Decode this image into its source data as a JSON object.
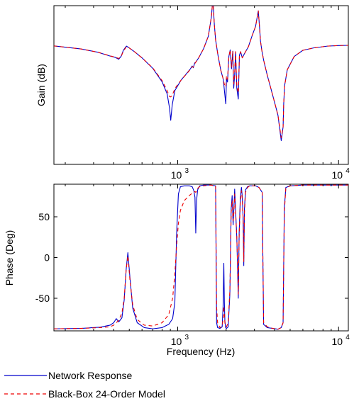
{
  "chart_data": [
    {
      "type": "line",
      "ylabel": "Gain (dB)",
      "xlabel": "",
      "xscale": "log",
      "xlim": [
        170,
        11500
      ],
      "ylim": [
        -60,
        20
      ],
      "ytick_labels": "none",
      "xticks": [
        {
          "value": 1000,
          "label": "10",
          "exp": "3"
        },
        {
          "value": 10000,
          "label": "10",
          "exp": "4"
        }
      ],
      "grid": false,
      "series": [
        {
          "name": "Network Response",
          "color": "#0000cc",
          "dash": "solid",
          "x": [
            170,
            250,
            320,
            380,
            410,
            430,
            445,
            460,
            480,
            500,
            540,
            600,
            700,
            800,
            860,
            890,
            905,
            925,
            960,
            1050,
            1150,
            1200,
            1230,
            1250,
            1275,
            1300,
            1350,
            1450,
            1550,
            1620,
            1655,
            1670,
            1690,
            1720,
            1780,
            1850,
            1920,
            1960,
            1990,
            2010,
            2040,
            2080,
            2120,
            2160,
            2200,
            2230,
            2260,
            2290,
            2330,
            2380,
            2420,
            2460,
            2520,
            2600,
            2750,
            2900,
            3050,
            3170,
            3230,
            3270,
            3330,
            3420,
            3600,
            3900,
            4200,
            4400,
            4520,
            4560,
            4620,
            4800,
            5300,
            6000,
            7000,
            8500,
            10000,
            11500
          ],
          "y": [
            -0.3,
            -1.8,
            -3.5,
            -5.4,
            -6.1,
            -7.0,
            -5.5,
            -2.4,
            -0.4,
            -1.3,
            -3.3,
            -6.3,
            -11.6,
            -18.4,
            -24.5,
            -31.7,
            -37.8,
            -29.9,
            -22.8,
            -17.5,
            -13.7,
            -11.8,
            -10.4,
            -11.3,
            -8.9,
            -8.3,
            -6.3,
            -1.6,
            4.6,
            14.4,
            23.7,
            17.4,
            10.4,
            2.8,
            -5.0,
            -12.3,
            -17.1,
            -24.3,
            -29.5,
            -16.7,
            -18.5,
            -5.6,
            -2.3,
            -11.8,
            -2.9,
            -21.6,
            -14.9,
            -3.2,
            -21.6,
            -27.1,
            -5.0,
            -3.2,
            -6.3,
            -4.2,
            -0.7,
            4.8,
            9.6,
            17.4,
            8.7,
            2.2,
            -2.3,
            -7.4,
            -14.9,
            -25.3,
            -35.2,
            -48.0,
            -41.2,
            -29.5,
            -20.3,
            -12.3,
            -5.6,
            -2.5,
            -1.3,
            -0.4,
            -0.1,
            0.0
          ]
        },
        {
          "name": "Black-Box 24-Order Model",
          "color": "#ee0000",
          "dash": "dashed",
          "x": [
            170,
            250,
            320,
            380,
            410,
            430,
            445,
            460,
            480,
            500,
            540,
            600,
            700,
            800,
            860,
            890,
            905,
            925,
            960,
            1050,
            1150,
            1200,
            1230,
            1250,
            1275,
            1300,
            1350,
            1450,
            1550,
            1620,
            1655,
            1670,
            1690,
            1720,
            1780,
            1850,
            1920,
            1960,
            1990,
            2010,
            2040,
            2080,
            2120,
            2160,
            2200,
            2230,
            2260,
            2290,
            2330,
            2380,
            2420,
            2460,
            2520,
            2600,
            2750,
            2900,
            3050,
            3170,
            3230,
            3270,
            3330,
            3420,
            3600,
            3900,
            4200,
            4400,
            4520,
            4560,
            4620,
            4800,
            5300,
            6000,
            7000,
            8500,
            10000,
            11500
          ],
          "y": [
            -0.3,
            -1.8,
            -3.5,
            -5.3,
            -6.0,
            -6.6,
            -5.6,
            -2.9,
            -0.7,
            -1.3,
            -3.3,
            -6.3,
            -11.4,
            -17.8,
            -22.9,
            -25.8,
            -26.0,
            -25.2,
            -21.8,
            -17.5,
            -13.9,
            -12.0,
            -10.8,
            -11.0,
            -9.3,
            -8.3,
            -6.3,
            -1.6,
            4.6,
            14.4,
            23.7,
            17.4,
            10.4,
            2.8,
            -5.0,
            -12.3,
            -17.1,
            -20.5,
            -20.9,
            -15.4,
            -17.1,
            -5.6,
            -2.3,
            -10.9,
            -2.9,
            -19.5,
            -14.0,
            -3.2,
            -20.3,
            -24.0,
            -5.0,
            -3.2,
            -6.3,
            -4.2,
            -0.7,
            4.8,
            9.6,
            17.4,
            8.7,
            2.2,
            -2.3,
            -7.4,
            -14.9,
            -25.3,
            -35.2,
            -46.6,
            -41.2,
            -29.5,
            -20.3,
            -12.3,
            -5.6,
            -2.5,
            -1.3,
            -0.4,
            -0.1,
            0.0
          ]
        }
      ]
    },
    {
      "type": "line",
      "ylabel": "Phase (Deg)",
      "xlabel": "Frequency (Hz)",
      "xscale": "log",
      "xlim": [
        170,
        11500
      ],
      "ylim": [
        -90,
        90
      ],
      "yticks": [
        {
          "value": 50,
          "label": "50"
        },
        {
          "value": 0,
          "label": "0"
        },
        {
          "value": -50,
          "label": "-50"
        }
      ],
      "xticks": [
        {
          "value": 1000,
          "label": "10",
          "exp": "3"
        },
        {
          "value": 10000,
          "label": "10",
          "exp": "4"
        }
      ],
      "grid": false,
      "series": [
        {
          "name": "Network Response",
          "color": "#0000cc",
          "dash": "solid",
          "x": [
            170,
            250,
            330,
            380,
            400,
            415,
            430,
            450,
            465,
            478,
            490,
            505,
            525,
            560,
            620,
            700,
            800,
            880,
            930,
            960,
            985,
            1010,
            1040,
            1100,
            1180,
            1230,
            1260,
            1280,
            1295,
            1310,
            1330,
            1370,
            1450,
            1600,
            1720,
            1745,
            1770,
            1830,
            1890,
            1915,
            1935,
            1950,
            1965,
            1985,
            2010,
            2060,
            2110,
            2150,
            2180,
            2210,
            2235,
            2260,
            2290,
            2330,
            2360,
            2380,
            2410,
            2450,
            2490,
            2520,
            2550,
            2575,
            2600,
            2640,
            2720,
            2800,
            2900,
            3050,
            3200,
            3300,
            3350,
            3420,
            3600,
            3900,
            4200,
            4400,
            4520,
            4600,
            4700,
            5000,
            6000,
            8000,
            10000,
            11500
          ],
          "y": [
            -87.5,
            -87.0,
            -85.5,
            -83.0,
            -80.0,
            -75.0,
            -79.0,
            -74.0,
            -52.0,
            -15.0,
            6.0,
            -25.0,
            -62.0,
            -80.0,
            -86.0,
            -87.5,
            -86.0,
            -82.0,
            -75.0,
            -55.0,
            30.0,
            78.0,
            87.0,
            88.0,
            88.0,
            87.0,
            82.0,
            74.0,
            30.0,
            70.0,
            83.0,
            88.0,
            89.0,
            89.0,
            88.0,
            -80.0,
            -86.0,
            -87.0,
            -85.0,
            -60.0,
            -7.0,
            -55.0,
            -78.0,
            -86.0,
            -87.0,
            -85.0,
            -45.0,
            60.0,
            76.0,
            40.0,
            60.0,
            84.0,
            58.0,
            25.0,
            -20.0,
            -50.0,
            30.0,
            73.0,
            86.0,
            75.0,
            50.0,
            -10.0,
            60.0,
            83.0,
            87.0,
            88.0,
            88.0,
            88.0,
            86.0,
            82.0,
            80.0,
            -82.0,
            -86.0,
            -87.0,
            -88.0,
            -86.0,
            -80.0,
            60.0,
            86.0,
            88.0,
            89.0,
            89.0,
            89.0,
            89.0
          ]
        },
        {
          "name": "Black-Box 24-Order Model",
          "color": "#ee0000",
          "dash": "dashed",
          "x": [
            170,
            250,
            330,
            380,
            400,
            415,
            430,
            450,
            465,
            478,
            490,
            505,
            525,
            560,
            620,
            700,
            800,
            880,
            930,
            960,
            985,
            1010,
            1040,
            1100,
            1180,
            1230,
            1260,
            1280,
            1295,
            1310,
            1330,
            1370,
            1450,
            1600,
            1720,
            1745,
            1770,
            1830,
            1890,
            1915,
            1935,
            1950,
            1965,
            1985,
            2010,
            2060,
            2110,
            2150,
            2180,
            2210,
            2235,
            2260,
            2290,
            2330,
            2360,
            2380,
            2410,
            2450,
            2490,
            2520,
            2550,
            2575,
            2600,
            2640,
            2720,
            2800,
            2900,
            3050,
            3200,
            3300,
            3350,
            3420,
            3600,
            3900,
            4200,
            4400,
            4520,
            4600,
            4700,
            5000,
            6000,
            8000,
            10000,
            11500
          ],
          "y": [
            -87.5,
            -87.0,
            -86.0,
            -85.0,
            -83.0,
            -80.0,
            -77.0,
            -68.0,
            -50.0,
            -15.0,
            2.0,
            -28.0,
            -58.0,
            -76.0,
            -83.0,
            -84.0,
            -80.0,
            -70.0,
            -50.0,
            -20.0,
            15.0,
            42.0,
            58.0,
            70.0,
            76.0,
            79.0,
            80.0,
            81.0,
            80.0,
            82.0,
            85.0,
            87.0,
            88.0,
            89.0,
            88.0,
            -60.0,
            -80.0,
            -86.0,
            -84.0,
            -75.0,
            -60.0,
            -70.0,
            -80.0,
            -84.0,
            -85.0,
            -80.0,
            -40.0,
            55.0,
            70.0,
            45.0,
            55.0,
            78.0,
            55.0,
            25.0,
            -15.0,
            -45.0,
            25.0,
            68.0,
            82.0,
            72.0,
            48.0,
            -5.0,
            55.0,
            80.0,
            86.0,
            88.0,
            88.0,
            88.0,
            86.0,
            82.0,
            80.0,
            -80.0,
            -85.0,
            -87.0,
            -88.0,
            -86.0,
            -80.0,
            55.0,
            85.0,
            88.0,
            89.0,
            89.0,
            89.0,
            89.0
          ]
        }
      ]
    }
  ],
  "legend": {
    "placement": "bottom-left",
    "entries": [
      {
        "label": "Network Response",
        "color": "#0000cc",
        "dash": "solid"
      },
      {
        "label": "Black-Box 24-Order Model",
        "color": "#ee0000",
        "dash": "dashed"
      }
    ]
  }
}
